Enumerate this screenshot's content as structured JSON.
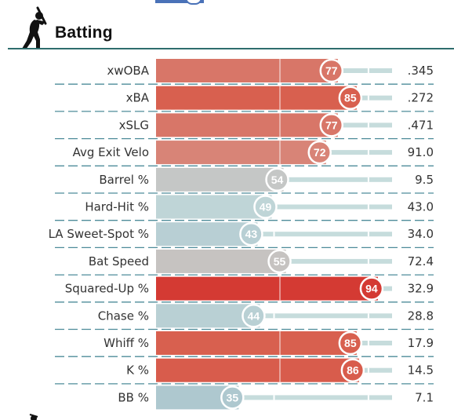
{
  "section": {
    "title": "Batting",
    "icon": "batter-icon"
  },
  "colors": {
    "header_rule": "#2e6d6d",
    "track": "#c6dcdc",
    "separator": "#4e8c9a",
    "scale": [
      "#4a72b8",
      "#a8c3cc",
      "#c0d6d8",
      "#d88a7d",
      "#d8604f",
      "#d22020"
    ]
  },
  "chart_data": {
    "type": "bar",
    "title": "Batting",
    "xlim": [
      0,
      100
    ],
    "metrics": [
      {
        "label": "xwOBA",
        "percentile": 77,
        "value": ".345"
      },
      {
        "label": "xBA",
        "percentile": 85,
        "value": ".272"
      },
      {
        "label": "xSLG",
        "percentile": 77,
        "value": ".471"
      },
      {
        "label": "Avg Exit Velo",
        "percentile": 72,
        "value": "91.0"
      },
      {
        "label": "Barrel %",
        "percentile": 54,
        "value": "9.5"
      },
      {
        "label": "Hard-Hit %",
        "percentile": 49,
        "value": "43.0"
      },
      {
        "label": "LA Sweet-Spot %",
        "percentile": 43,
        "value": "34.0"
      },
      {
        "label": "Bat Speed",
        "percentile": 55,
        "value": "72.4"
      },
      {
        "label": "Squared-Up %",
        "percentile": 94,
        "value": "32.9"
      },
      {
        "label": "Chase %",
        "percentile": 44,
        "value": "28.8"
      },
      {
        "label": "Whiff %",
        "percentile": 85,
        "value": "17.9"
      },
      {
        "label": "K %",
        "percentile": 86,
        "value": "14.5"
      },
      {
        "label": "BB %",
        "percentile": 35,
        "value": "7.1"
      }
    ]
  }
}
